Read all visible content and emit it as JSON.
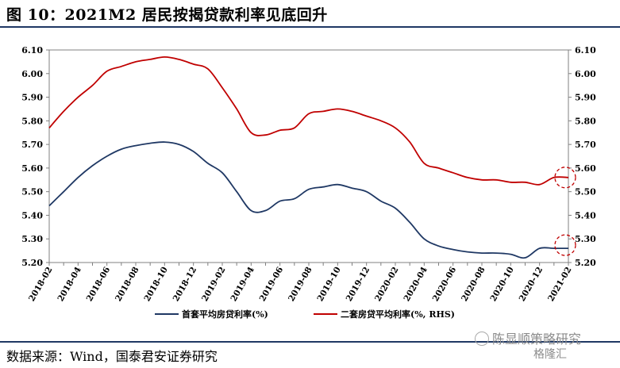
{
  "figure": {
    "title": "图 10：2021M2 居民按揭贷款利率见底回升",
    "source": "数据来源：Wind，国泰君安证券研究",
    "watermark": "陈显顺策略研究",
    "watermark2": "格隆汇"
  },
  "chart_data": {
    "type": "line",
    "x": [
      "2018-02",
      "2018-03",
      "2018-04",
      "2018-05",
      "2018-06",
      "2018-07",
      "2018-08",
      "2018-09",
      "2018-10",
      "2018-11",
      "2018-12",
      "2019-01",
      "2019-02",
      "2019-03",
      "2019-04",
      "2019-05",
      "2019-06",
      "2019-07",
      "2019-08",
      "2019-09",
      "2019-10",
      "2019-11",
      "2019-12",
      "2020-01",
      "2020-02",
      "2020-03",
      "2020-04",
      "2020-05",
      "2020-06",
      "2020-07",
      "2020-08",
      "2020-09",
      "2020-10",
      "2020-11",
      "2020-12",
      "2021-01",
      "2021-02"
    ],
    "x_tick_labels": [
      "2018-02",
      "2018-04",
      "2018-06",
      "2018-08",
      "2018-10",
      "2018-12",
      "2019-02",
      "2019-04",
      "2019-06",
      "2019-08",
      "2019-10",
      "2019-12",
      "2020-02",
      "2020-04",
      "2020-06",
      "2020-08",
      "2020-10",
      "2020-12",
      "2021-02"
    ],
    "series": [
      {
        "name": "首套平均房贷利率(%)",
        "axis": "left",
        "color": "#1f3864",
        "values": [
          5.44,
          5.5,
          5.56,
          5.61,
          5.65,
          5.68,
          5.695,
          5.705,
          5.71,
          5.7,
          5.67,
          5.62,
          5.58,
          5.5,
          5.42,
          5.42,
          5.46,
          5.47,
          5.51,
          5.52,
          5.53,
          5.515,
          5.5,
          5.46,
          5.43,
          5.37,
          5.3,
          5.27,
          5.255,
          5.245,
          5.24,
          5.24,
          5.235,
          5.22,
          5.26,
          5.26,
          5.26
        ]
      },
      {
        "name": "二套房贷平均利率(%, RHS)",
        "axis": "right",
        "color": "#c00000",
        "values": [
          5.77,
          5.84,
          5.9,
          5.95,
          6.01,
          6.03,
          6.05,
          6.06,
          6.07,
          6.06,
          6.04,
          6.02,
          5.94,
          5.85,
          5.75,
          5.74,
          5.76,
          5.77,
          5.83,
          5.84,
          5.85,
          5.84,
          5.82,
          5.8,
          5.77,
          5.71,
          5.62,
          5.6,
          5.58,
          5.56,
          5.55,
          5.55,
          5.54,
          5.54,
          5.53,
          5.56,
          5.56
        ]
      }
    ],
    "y_left": {
      "ticks": [
        "5.20",
        "5.30",
        "5.40",
        "5.50",
        "5.60",
        "5.70",
        "5.80",
        "5.90",
        "6.00",
        "6.10"
      ],
      "min": 5.2,
      "max": 6.1
    },
    "y_right": {
      "ticks": [
        "5.20",
        "5.30",
        "5.40",
        "5.50",
        "5.60",
        "5.70",
        "5.80",
        "5.90",
        "6.00",
        "6.10"
      ],
      "min": 5.2,
      "max": 6.1
    },
    "grid": false,
    "legend_position": "bottom",
    "annotations": [
      "dashed red circle around 2021-02 end of both series"
    ]
  }
}
